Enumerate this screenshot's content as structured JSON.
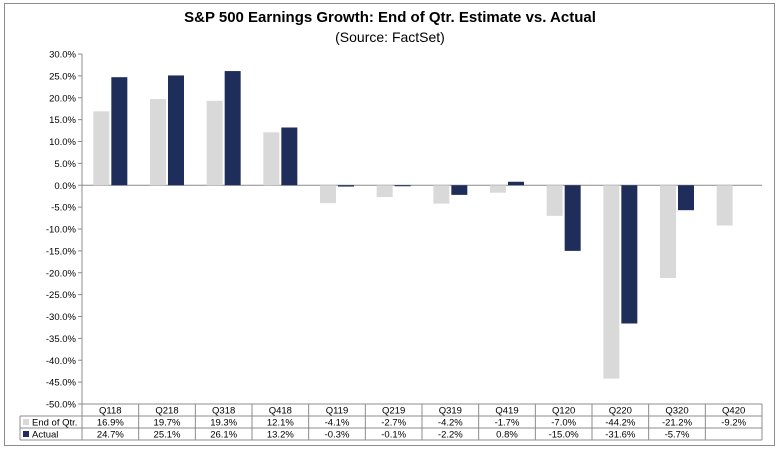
{
  "chart_data": {
    "type": "bar",
    "title": "S&P 500 Earnings Growth: End of Qtr. Estimate vs. Actual",
    "subtitle": "(Source: FactSet)",
    "categories": [
      "Q118",
      "Q218",
      "Q318",
      "Q418",
      "Q119",
      "Q219",
      "Q319",
      "Q419",
      "Q120",
      "Q220",
      "Q320",
      "Q420"
    ],
    "series": [
      {
        "name": "End of Qtr.",
        "color": "#d9d9d9",
        "values": [
          16.9,
          19.7,
          19.3,
          12.1,
          -4.1,
          -2.7,
          -4.2,
          -1.7,
          -7.0,
          -44.2,
          -21.2,
          -9.2
        ],
        "labels": [
          "16.9%",
          "19.7%",
          "19.3%",
          "12.1%",
          "-4.1%",
          "-2.7%",
          "-4.2%",
          "-1.7%",
          "-7.0%",
          "-44.2%",
          "-21.2%",
          "-9.2%"
        ]
      },
      {
        "name": "Actual",
        "color": "#1f2d5a",
        "values": [
          24.7,
          25.1,
          26.1,
          13.2,
          -0.3,
          -0.1,
          -2.2,
          0.8,
          -15.0,
          -31.6,
          -5.7,
          null
        ],
        "labels": [
          "24.7%",
          "25.1%",
          "26.1%",
          "13.2%",
          "-0.3%",
          "-0.1%",
          "-2.2%",
          "0.8%",
          "-15.0%",
          "-31.6%",
          "-5.7%",
          ""
        ]
      }
    ],
    "ylim": [
      -50,
      30
    ],
    "ytick_step": 5,
    "ytick_labels": [
      "30.0%",
      "25.0%",
      "20.0%",
      "15.0%",
      "10.0%",
      "5.0%",
      "0.0%",
      "-5.0%",
      "-10.0%",
      "-15.0%",
      "-20.0%",
      "-25.0%",
      "-30.0%",
      "-35.0%",
      "-40.0%",
      "-45.0%",
      "-50.0%"
    ],
    "grid": false,
    "legend": "data-table-left"
  }
}
